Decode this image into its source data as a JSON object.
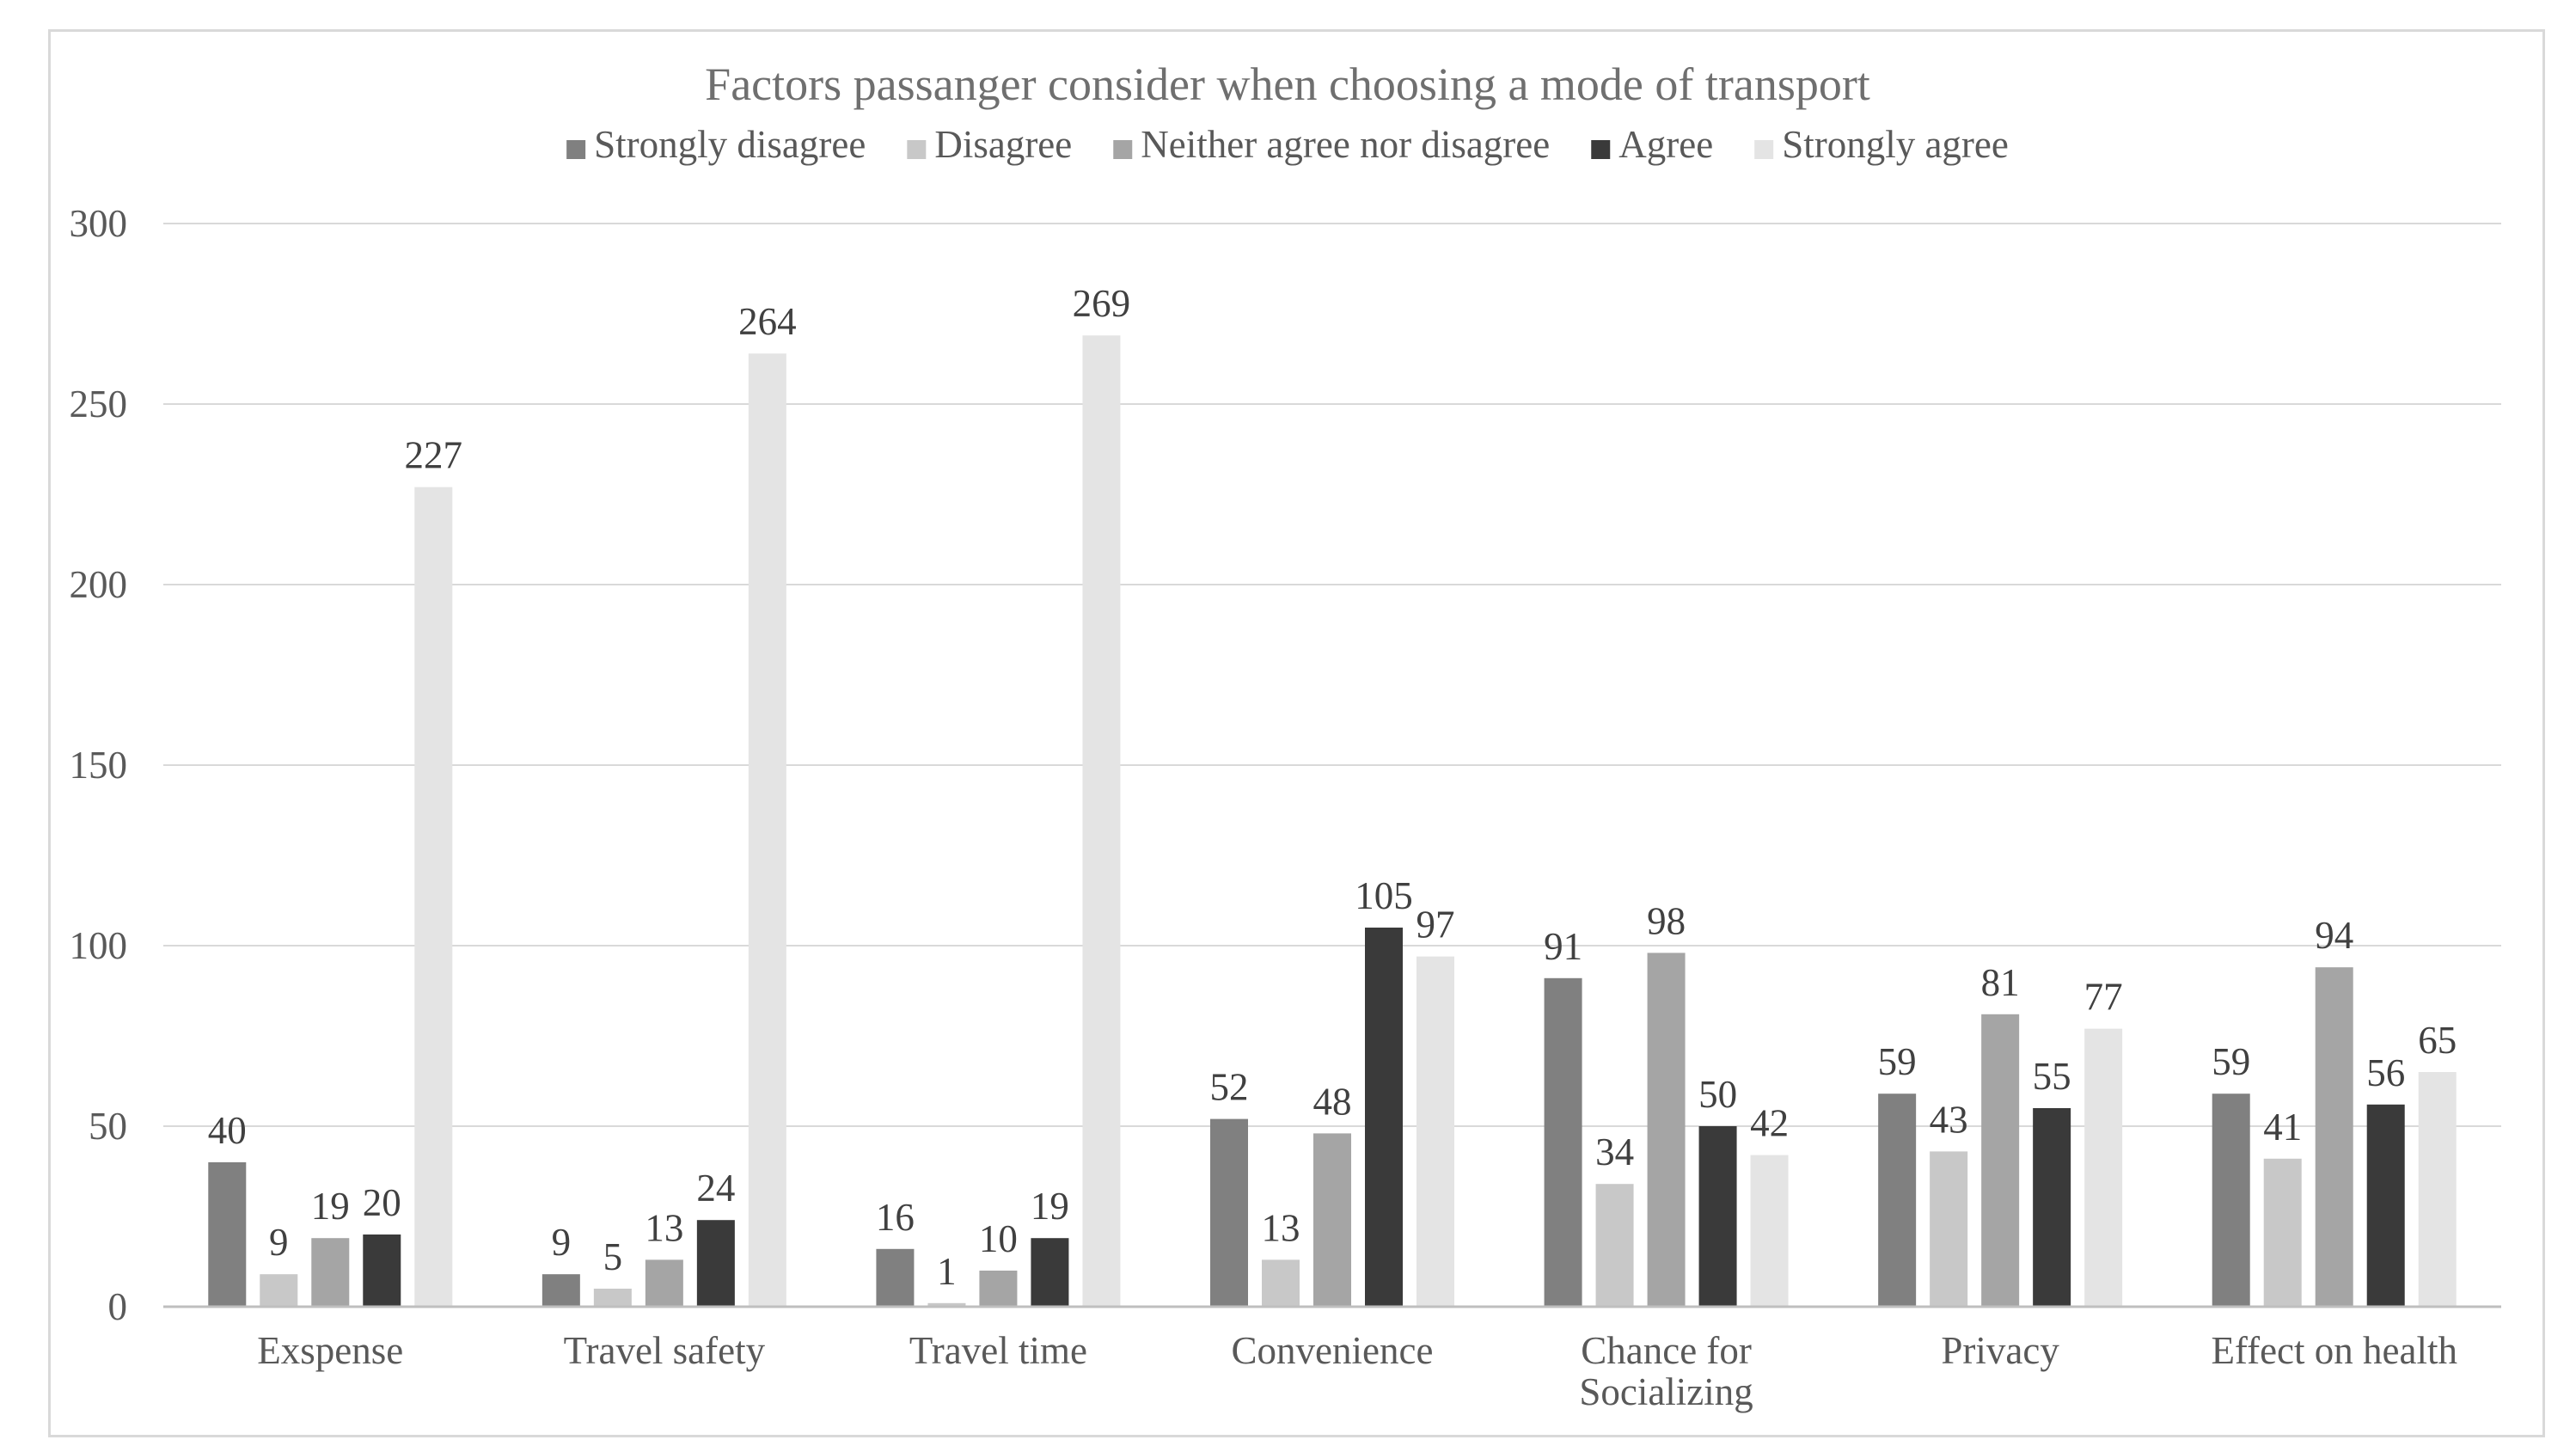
{
  "chart_data": {
    "type": "bar",
    "title": "Factors passanger consider when choosing a mode of transport",
    "xlabel": "",
    "ylabel": "",
    "ylim": [
      0,
      300
    ],
    "yticks": [
      0,
      50,
      100,
      150,
      200,
      250,
      300
    ],
    "grid": true,
    "legend_position": "top",
    "categories": [
      [
        "Exspense"
      ],
      [
        "Travel safety"
      ],
      [
        "Travel time"
      ],
      [
        "Convenience"
      ],
      [
        "Chance for",
        "Socializing"
      ],
      [
        "Privacy"
      ],
      [
        "Effect on health"
      ]
    ],
    "series": [
      {
        "name": "Strongly disagree",
        "color": "#808080",
        "values": [
          40,
          9,
          16,
          52,
          91,
          59,
          59
        ]
      },
      {
        "name": "Disagree",
        "color": "#c8c8c8",
        "values": [
          9,
          5,
          1,
          13,
          34,
          43,
          41
        ]
      },
      {
        "name": "Neither agree nor disagree",
        "color": "#a5a5a5",
        "values": [
          19,
          13,
          10,
          48,
          98,
          81,
          94
        ]
      },
      {
        "name": "Agree",
        "color": "#3a3a3a",
        "values": [
          20,
          24,
          19,
          105,
          50,
          55,
          56
        ]
      },
      {
        "name": "Strongly agree",
        "color": "#e4e4e4",
        "values": [
          227,
          264,
          269,
          97,
          42,
          77,
          65
        ]
      }
    ]
  }
}
